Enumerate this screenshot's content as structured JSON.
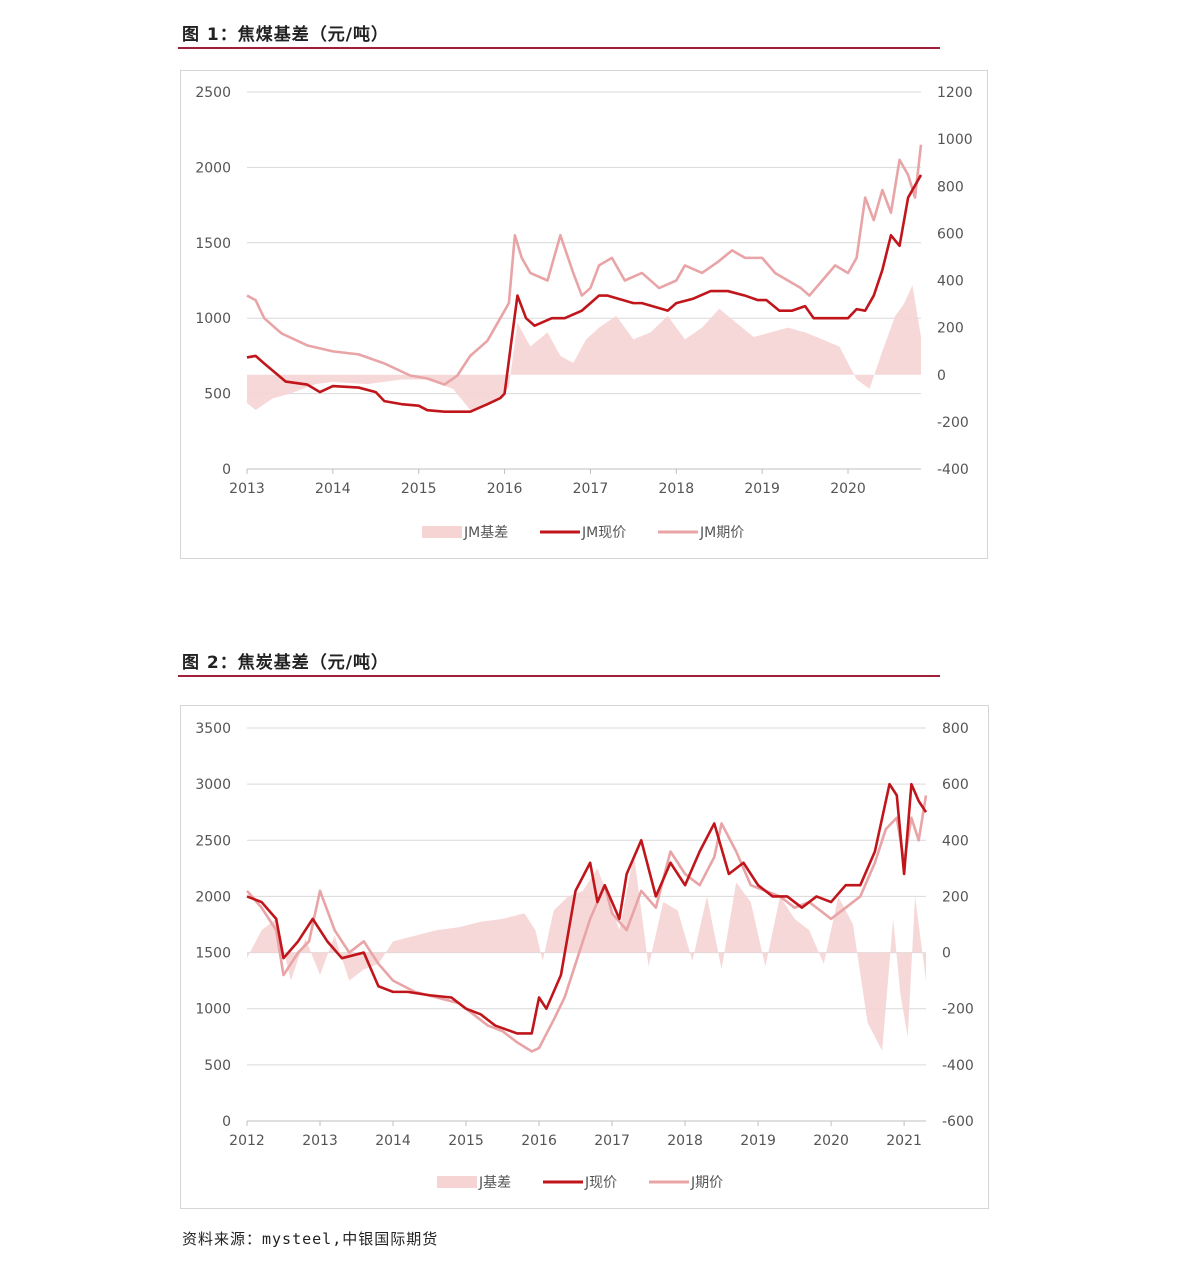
{
  "figures": [
    {
      "title": "图 1：焦煤基差（元/吨）"
    },
    {
      "title": "图 2：焦炭基差（元/吨）"
    }
  ],
  "source": "资料来源：mysteel,中银国际期货",
  "colors": {
    "spot": "#c0161b",
    "futures": "#e8a4a6",
    "basis": "#f6d4d4",
    "rule": "#a0203a",
    "grid": "#d9d9d9"
  },
  "chart_data": [
    {
      "type": "line",
      "y_left_ticks": [
        "2500",
        "2000",
        "1500",
        "1000",
        "500",
        "0"
      ],
      "y_right_ticks": [
        "1200",
        "1000",
        "800",
        "600",
        "400",
        "200",
        "0",
        "-200",
        "-400"
      ],
      "x_ticks": [
        "2013",
        "2014",
        "2015",
        "2016",
        "2017",
        "2018",
        "2019",
        "2020"
      ],
      "ylim_left": [
        0,
        2500
      ],
      "ylim_right": [
        -400,
        1200
      ],
      "xlim": [
        2013.0,
        2020.85
      ],
      "legend": [
        "JM基差",
        "JM现价",
        "JM期价"
      ],
      "legend_placement": "bottom",
      "series": [
        {
          "name": "JM现价",
          "axis": "left",
          "style": "line",
          "x": [
            2013.0,
            2013.1,
            2013.2,
            2013.45,
            2013.7,
            2013.85,
            2014.0,
            2014.3,
            2014.5,
            2014.6,
            2014.8,
            2015.0,
            2015.1,
            2015.3,
            2015.6,
            2015.8,
            2015.95,
            2016.0,
            2016.08,
            2016.15,
            2016.25,
            2016.35,
            2016.55,
            2016.7,
            2016.9,
            2017.0,
            2017.1,
            2017.2,
            2017.5,
            2017.6,
            2017.9,
            2018.0,
            2018.2,
            2018.4,
            2018.6,
            2018.8,
            2018.95,
            2019.05,
            2019.2,
            2019.35,
            2019.5,
            2019.6,
            2019.7,
            2020.0,
            2020.1,
            2020.2,
            2020.3,
            2020.4,
            2020.5,
            2020.6,
            2020.7,
            2020.8,
            2020.85
          ],
          "y": [
            740,
            750,
            700,
            580,
            560,
            510,
            550,
            540,
            510,
            450,
            430,
            420,
            390,
            380,
            380,
            430,
            470,
            500,
            850,
            1150,
            1000,
            950,
            1000,
            1000,
            1050,
            1100,
            1150,
            1150,
            1100,
            1100,
            1050,
            1100,
            1130,
            1180,
            1180,
            1150,
            1120,
            1120,
            1050,
            1050,
            1080,
            1000,
            1000,
            1000,
            1060,
            1050,
            1150,
            1320,
            1550,
            1480,
            1800,
            1900,
            1950
          ]
        },
        {
          "name": "JM期价",
          "axis": "left",
          "style": "line",
          "x": [
            2013.0,
            2013.1,
            2013.2,
            2013.4,
            2013.7,
            2014.0,
            2014.3,
            2014.6,
            2014.9,
            2015.1,
            2015.3,
            2015.45,
            2015.6,
            2015.8,
            2015.95,
            2016.05,
            2016.12,
            2016.2,
            2016.3,
            2016.5,
            2016.65,
            2016.8,
            2016.9,
            2017.0,
            2017.1,
            2017.25,
            2017.4,
            2017.6,
            2017.8,
            2018.0,
            2018.1,
            2018.3,
            2018.5,
            2018.65,
            2018.8,
            2019.0,
            2019.15,
            2019.3,
            2019.45,
            2019.55,
            2019.7,
            2019.85,
            2020.0,
            2020.1,
            2020.2,
            2020.3,
            2020.4,
            2020.5,
            2020.6,
            2020.7,
            2020.78,
            2020.85
          ],
          "y": [
            1150,
            1120,
            1000,
            900,
            820,
            780,
            760,
            700,
            620,
            600,
            560,
            620,
            750,
            850,
            1000,
            1100,
            1550,
            1400,
            1300,
            1250,
            1550,
            1300,
            1150,
            1200,
            1350,
            1400,
            1250,
            1300,
            1200,
            1250,
            1350,
            1300,
            1380,
            1450,
            1400,
            1400,
            1300,
            1250,
            1200,
            1150,
            1250,
            1350,
            1300,
            1400,
            1800,
            1650,
            1850,
            1700,
            2050,
            1950,
            1800,
            2150
          ]
        },
        {
          "name": "JM基差",
          "axis": "right",
          "style": "area",
          "x": [
            2013.0,
            2013.1,
            2013.3,
            2013.5,
            2013.8,
            2014.0,
            2014.4,
            2014.8,
            2015.1,
            2015.4,
            2015.6,
            2015.8,
            2015.95,
            2016.05,
            2016.15,
            2016.3,
            2016.5,
            2016.65,
            2016.8,
            2016.95,
            2017.1,
            2017.3,
            2017.5,
            2017.7,
            2017.9,
            2018.1,
            2018.3,
            2018.5,
            2018.7,
            2018.9,
            2019.1,
            2019.3,
            2019.5,
            2019.7,
            2019.9,
            2020.1,
            2020.25,
            2020.4,
            2020.55,
            2020.65,
            2020.75,
            2020.85
          ],
          "y": [
            -120,
            -150,
            -100,
            -80,
            -40,
            -30,
            -40,
            -20,
            -20,
            -60,
            -150,
            -120,
            -100,
            -50,
            220,
            120,
            180,
            80,
            50,
            150,
            200,
            250,
            150,
            180,
            250,
            150,
            200,
            280,
            220,
            160,
            180,
            200,
            180,
            150,
            120,
            -20,
            -60,
            100,
            250,
            300,
            380,
            160
          ]
        }
      ]
    },
    {
      "type": "line",
      "y_left_ticks": [
        "3500",
        "3000",
        "2500",
        "2000",
        "1500",
        "1000",
        "500",
        "0"
      ],
      "y_right_ticks": [
        "800",
        "600",
        "400",
        "200",
        "0",
        "-200",
        "-400",
        "-600"
      ],
      "x_ticks": [
        "2012",
        "2013",
        "2014",
        "2015",
        "2016",
        "2017",
        "2018",
        "2019",
        "2020",
        "2021"
      ],
      "ylim_left": [
        0,
        3500
      ],
      "ylim_right": [
        -600,
        800
      ],
      "xlim": [
        2012.0,
        2021.3
      ],
      "legend": [
        "J基差",
        "J现价",
        "J期价"
      ],
      "legend_placement": "bottom",
      "series": [
        {
          "name": "J现价",
          "axis": "left",
          "style": "line",
          "x": [
            2012.0,
            2012.2,
            2012.4,
            2012.5,
            2012.7,
            2012.9,
            2013.1,
            2013.3,
            2013.6,
            2013.8,
            2014.0,
            2014.2,
            2014.5,
            2014.8,
            2015.0,
            2015.2,
            2015.4,
            2015.7,
            2015.9,
            2016.0,
            2016.1,
            2016.3,
            2016.5,
            2016.7,
            2016.8,
            2016.9,
            2017.1,
            2017.2,
            2017.4,
            2017.6,
            2017.8,
            2018.0,
            2018.2,
            2018.4,
            2018.6,
            2018.8,
            2019.0,
            2019.2,
            2019.4,
            2019.6,
            2019.8,
            2020.0,
            2020.2,
            2020.4,
            2020.6,
            2020.8,
            2020.9,
            2021.0,
            2021.1,
            2021.2,
            2021.3
          ],
          "y": [
            2000,
            1950,
            1800,
            1450,
            1600,
            1800,
            1600,
            1450,
            1500,
            1200,
            1150,
            1150,
            1120,
            1100,
            1000,
            950,
            850,
            780,
            780,
            1100,
            1000,
            1300,
            2050,
            2300,
            1950,
            2100,
            1800,
            2200,
            2500,
            2000,
            2300,
            2100,
            2400,
            2650,
            2200,
            2300,
            2100,
            2000,
            2000,
            1900,
            2000,
            1950,
            2100,
            2100,
            2400,
            3000,
            2900,
            2200,
            3000,
            2850,
            2750
          ]
        },
        {
          "name": "J期价",
          "axis": "left",
          "style": "line",
          "x": [
            2012.0,
            2012.2,
            2012.4,
            2012.5,
            2012.7,
            2012.85,
            2013.0,
            2013.2,
            2013.4,
            2013.6,
            2013.8,
            2014.0,
            2014.3,
            2014.6,
            2014.9,
            2015.1,
            2015.3,
            2015.5,
            2015.7,
            2015.9,
            2016.0,
            2016.2,
            2016.35,
            2016.5,
            2016.7,
            2016.9,
            2017.0,
            2017.2,
            2017.4,
            2017.6,
            2017.8,
            2018.0,
            2018.2,
            2018.4,
            2018.5,
            2018.7,
            2018.9,
            2019.1,
            2019.3,
            2019.5,
            2019.7,
            2019.9,
            2020.0,
            2020.2,
            2020.4,
            2020.6,
            2020.75,
            2020.9,
            2021.0,
            2021.1,
            2021.2,
            2021.3
          ],
          "y": [
            2050,
            1900,
            1700,
            1300,
            1500,
            1600,
            2050,
            1700,
            1500,
            1600,
            1400,
            1250,
            1150,
            1100,
            1050,
            950,
            850,
            800,
            700,
            620,
            650,
            900,
            1100,
            1400,
            1800,
            2100,
            1850,
            1700,
            2050,
            1900,
            2400,
            2200,
            2100,
            2350,
            2650,
            2400,
            2100,
            2050,
            2000,
            1900,
            1950,
            1850,
            1800,
            1900,
            2000,
            2300,
            2600,
            2700,
            2300,
            2700,
            2500,
            2900
          ]
        },
        {
          "name": "J基差",
          "axis": "right",
          "style": "area",
          "x": [
            2012.0,
            2012.2,
            2012.4,
            2012.6,
            2012.8,
            2013.0,
            2013.2,
            2013.4,
            2013.6,
            2013.8,
            2014.0,
            2014.3,
            2014.6,
            2014.9,
            2015.2,
            2015.5,
            2015.8,
            2015.95,
            2016.05,
            2016.2,
            2016.4,
            2016.6,
            2016.8,
            2016.95,
            2017.1,
            2017.3,
            2017.5,
            2017.7,
            2017.9,
            2018.1,
            2018.3,
            2018.5,
            2018.7,
            2018.9,
            2019.1,
            2019.3,
            2019.5,
            2019.7,
            2019.9,
            2020.1,
            2020.3,
            2020.5,
            2020.7,
            2020.85,
            2020.95,
            2021.05,
            2021.15,
            2021.3
          ],
          "y": [
            -20,
            80,
            120,
            -100,
            50,
            -80,
            60,
            -100,
            -60,
            -40,
            40,
            60,
            80,
            90,
            110,
            120,
            140,
            80,
            -30,
            150,
            200,
            220,
            300,
            200,
            80,
            350,
            -50,
            180,
            150,
            -30,
            200,
            -60,
            250,
            180,
            -50,
            200,
            120,
            80,
            -40,
            200,
            100,
            -250,
            -350,
            120,
            -150,
            -300,
            200,
            -100
          ]
        }
      ]
    }
  ]
}
